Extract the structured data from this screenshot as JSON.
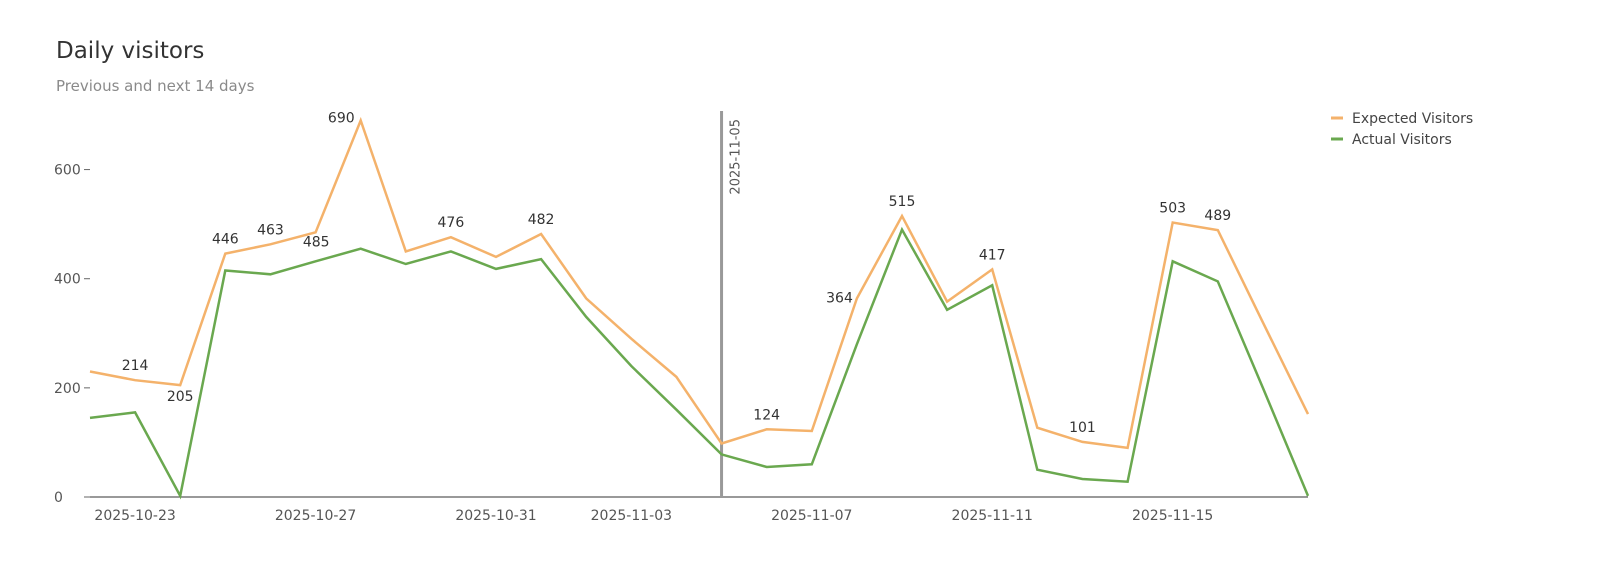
{
  "chart_data": {
    "type": "line",
    "title": "Daily visitors",
    "subtitle": "Previous and next 14 days",
    "xlabel": "",
    "ylabel": "",
    "ylim": [
      0,
      700
    ],
    "yticks": [
      0,
      200,
      400,
      600
    ],
    "grid": false,
    "legend_position": "top-right",
    "x": [
      "2025-10-22",
      "2025-10-23",
      "2025-10-24",
      "2025-10-25",
      "2025-10-26",
      "2025-10-27",
      "2025-10-28",
      "2025-10-29",
      "2025-10-30",
      "2025-10-31",
      "2025-11-01",
      "2025-11-02",
      "2025-11-03",
      "2025-11-04",
      "2025-11-05",
      "2025-11-06",
      "2025-11-07",
      "2025-11-08",
      "2025-11-09",
      "2025-11-10",
      "2025-11-11",
      "2025-11-12",
      "2025-11-13",
      "2025-11-14",
      "2025-11-15",
      "2025-11-16",
      "2025-11-17",
      "2025-11-18"
    ],
    "xticks": [
      "2025-10-23",
      "2025-10-27",
      "2025-10-31",
      "2025-11-03",
      "2025-11-07",
      "2025-11-11",
      "2025-11-15"
    ],
    "series": [
      {
        "name": "Expected Visitors",
        "color": "#f4b26b",
        "values": [
          230,
          214,
          205,
          446,
          463,
          485,
          690,
          450,
          476,
          440,
          482,
          364,
          290,
          220,
          98,
          124,
          121,
          364,
          515,
          358,
          417,
          127,
          101,
          90,
          503,
          489,
          320,
          152
        ]
      },
      {
        "name": "Actual Visitors",
        "color": "#6aa84f",
        "values": [
          145,
          155,
          2,
          415,
          408,
          432,
          455,
          427,
          450,
          418,
          436,
          330,
          240,
          160,
          78,
          55,
          60,
          280,
          490,
          343,
          388,
          50,
          33,
          28,
          432,
          395,
          200,
          2
        ]
      }
    ],
    "data_labels": [
      {
        "series": "Expected Visitors",
        "x": "2025-10-23",
        "value": 214,
        "text": "214"
      },
      {
        "series": "Expected Visitors",
        "x": "2025-10-24",
        "value": 205,
        "text": "205"
      },
      {
        "series": "Expected Visitors",
        "x": "2025-10-25",
        "value": 446,
        "text": "446"
      },
      {
        "series": "Expected Visitors",
        "x": "2025-10-26",
        "value": 463,
        "text": "463"
      },
      {
        "series": "Expected Visitors",
        "x": "2025-10-27",
        "value": 485,
        "text": "485"
      },
      {
        "series": "Expected Visitors",
        "x": "2025-10-28",
        "value": 690,
        "text": "690"
      },
      {
        "series": "Expected Visitors",
        "x": "2025-10-30",
        "value": 476,
        "text": "476"
      },
      {
        "series": "Expected Visitors",
        "x": "2025-11-01",
        "value": 482,
        "text": "482"
      },
      {
        "series": "Expected Visitors",
        "x": "2025-11-06",
        "value": 124,
        "text": "124"
      },
      {
        "series": "Expected Visitors",
        "x": "2025-11-08",
        "value": 364,
        "text": "364"
      },
      {
        "series": "Expected Visitors",
        "x": "2025-11-09",
        "value": 515,
        "text": "515"
      },
      {
        "series": "Expected Visitors",
        "x": "2025-11-11",
        "value": 417,
        "text": "417"
      },
      {
        "series": "Expected Visitors",
        "x": "2025-11-13",
        "value": 101,
        "text": "101"
      },
      {
        "series": "Expected Visitors",
        "x": "2025-11-15",
        "value": 503,
        "text": "503"
      },
      {
        "series": "Expected Visitors",
        "x": "2025-11-16",
        "value": 489,
        "text": "489"
      }
    ],
    "annotations": [
      {
        "type": "vertical-line",
        "x": "2025-11-05",
        "label": "2025-11-05",
        "color": "#999999"
      }
    ]
  }
}
